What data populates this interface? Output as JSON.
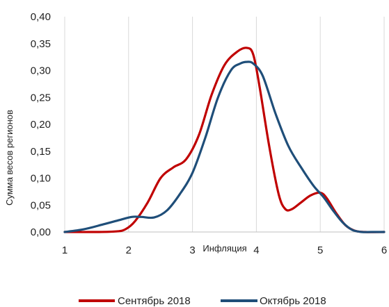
{
  "chart_data": {
    "type": "line",
    "title": "",
    "xlabel": "Инфляция",
    "ylabel": "Сумма весов регионов",
    "xlim": [
      1,
      6
    ],
    "ylim": [
      0,
      0.4
    ],
    "x_ticks": [
      "1",
      "2",
      "3",
      "4",
      "5",
      "6"
    ],
    "y_ticks": [
      "0,00",
      "0,05",
      "0,10",
      "0,15",
      "0,20",
      "0,25",
      "0,30",
      "0,35",
      "0,40"
    ],
    "grid": "vertical",
    "legend_position": "bottom",
    "series": [
      {
        "name": "Сентябрь 2018",
        "color": "#C00000",
        "x": [
          1.0,
          1.5,
          1.8,
          1.95,
          2.1,
          2.3,
          2.5,
          2.7,
          2.9,
          3.1,
          3.3,
          3.5,
          3.7,
          3.85,
          3.95,
          4.05,
          4.2,
          4.35,
          4.45,
          4.55,
          4.7,
          4.85,
          5.0,
          5.1,
          5.25,
          5.4,
          5.55,
          5.7,
          6.0
        ],
        "y": [
          0.0,
          0.0,
          0.001,
          0.005,
          0.02,
          0.055,
          0.1,
          0.12,
          0.135,
          0.18,
          0.255,
          0.31,
          0.335,
          0.342,
          0.33,
          0.27,
          0.16,
          0.07,
          0.043,
          0.042,
          0.055,
          0.068,
          0.073,
          0.063,
          0.035,
          0.012,
          0.002,
          0.0,
          0.0
        ]
      },
      {
        "name": "Октябрь 2018",
        "color": "#1F4E79",
        "x": [
          1.0,
          1.3,
          1.6,
          1.85,
          2.05,
          2.2,
          2.4,
          2.6,
          2.8,
          3.0,
          3.2,
          3.4,
          3.6,
          3.75,
          3.85,
          3.95,
          4.1,
          4.3,
          4.5,
          4.7,
          4.9,
          5.05,
          5.2,
          5.35,
          5.5,
          5.65,
          5.8,
          6.0
        ],
        "y": [
          0.0,
          0.005,
          0.014,
          0.022,
          0.028,
          0.028,
          0.027,
          0.04,
          0.07,
          0.11,
          0.175,
          0.25,
          0.3,
          0.313,
          0.316,
          0.313,
          0.29,
          0.22,
          0.16,
          0.12,
          0.085,
          0.065,
          0.04,
          0.018,
          0.004,
          0.0,
          0.0,
          0.0
        ]
      }
    ]
  }
}
